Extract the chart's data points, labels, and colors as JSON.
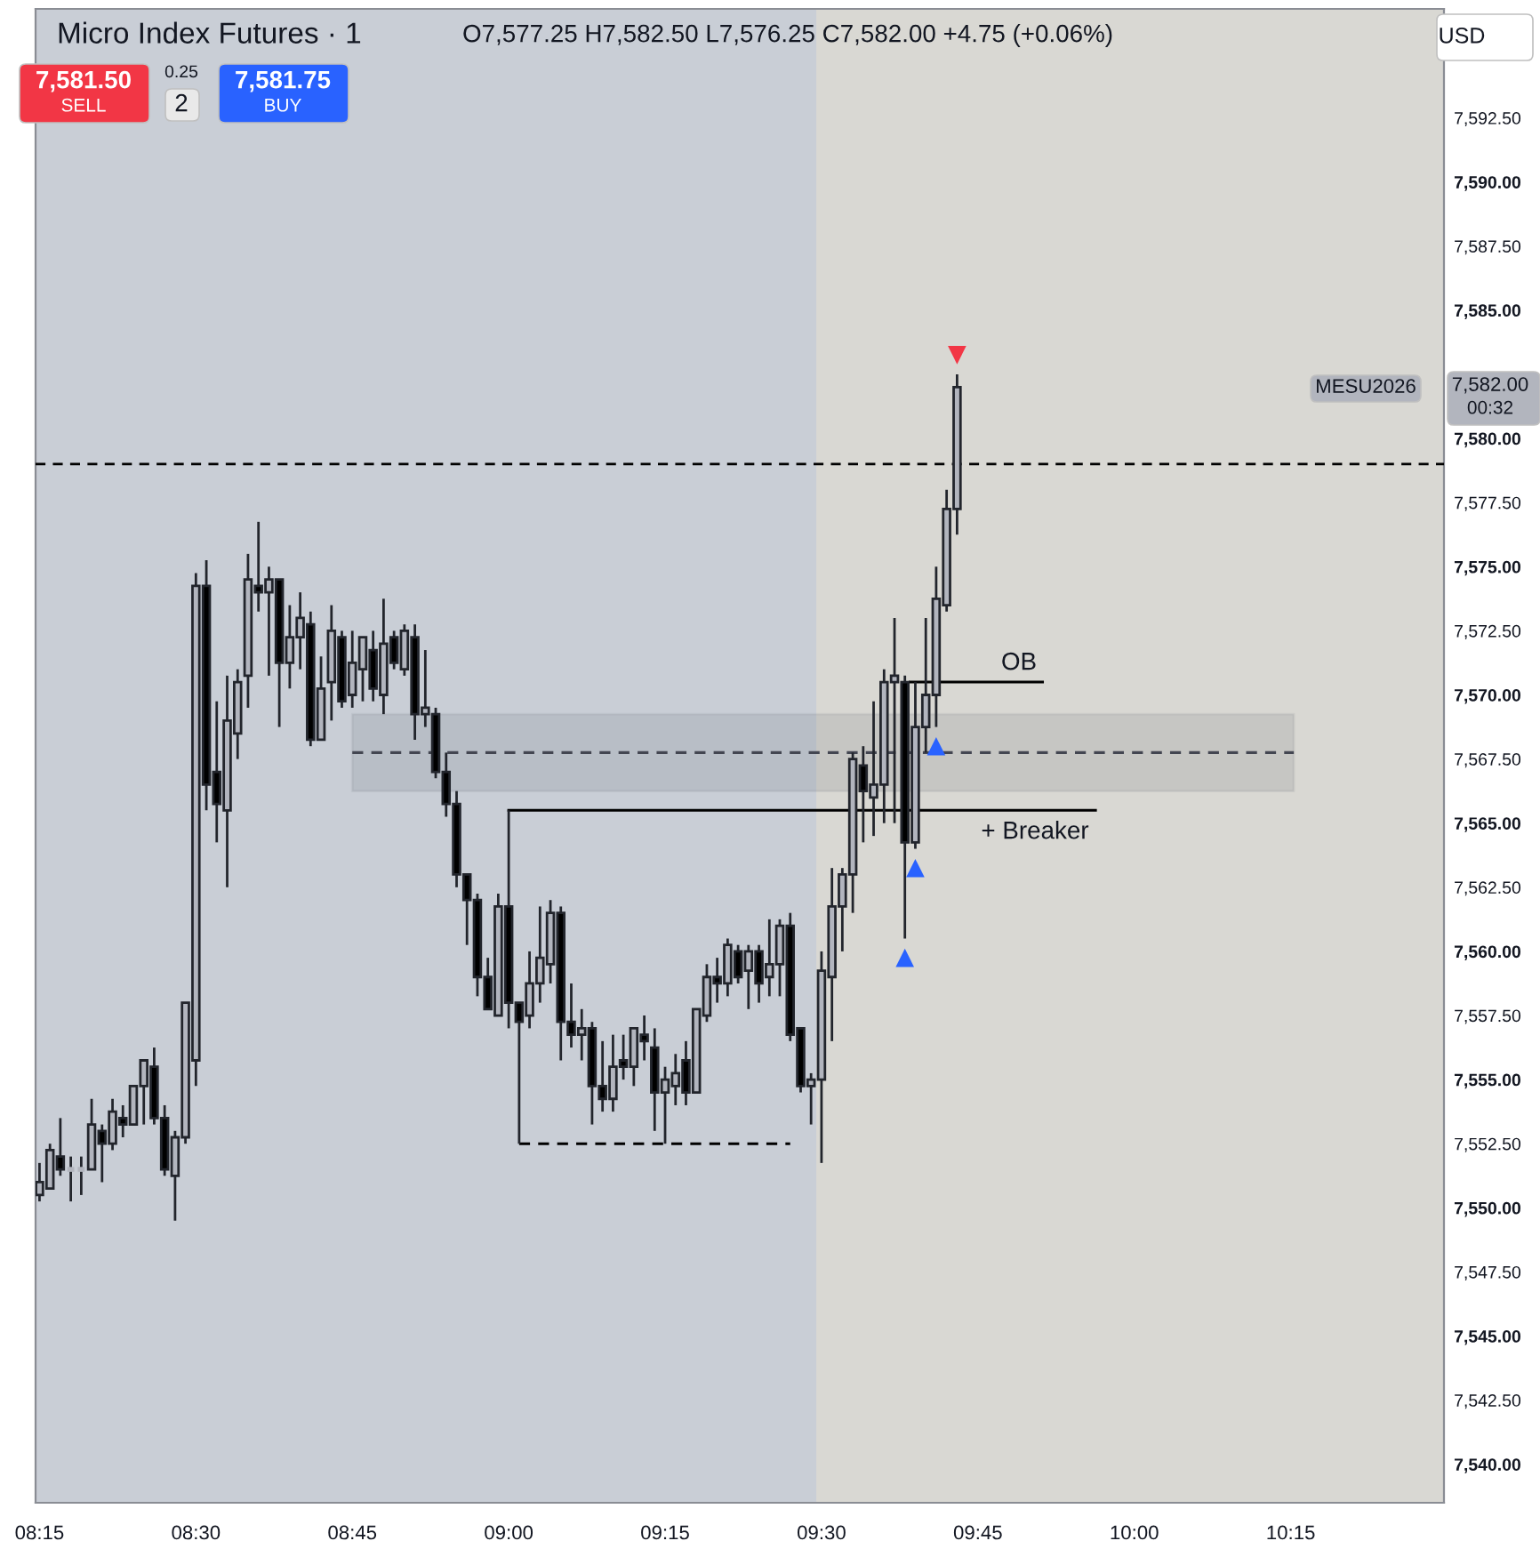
{
  "chart_data": {
    "type": "candlestick",
    "title": "Micro Index Futures · 1",
    "subtitle": "O7,577.25 H7,582.50 L7,576.25 C7,582.00 +4.75 (+0.06%)",
    "xlim": [
      8.2437,
      10.495
    ],
    "ylim": [
      7538.5,
      7596.75
    ],
    "xticks": [
      {
        "value": 8.25,
        "label": "08:15"
      },
      {
        "value": 8.5,
        "label": "08:30"
      },
      {
        "value": 8.75,
        "label": "08:45"
      },
      {
        "value": 9,
        "label": "09:00"
      },
      {
        "value": 9.25,
        "label": "09:15"
      },
      {
        "value": 9.5,
        "label": "09:30"
      },
      {
        "value": 9.75,
        "label": "09:45"
      },
      {
        "value": 10,
        "label": "10:00"
      },
      {
        "value": 10.25,
        "label": "10:15"
      }
    ],
    "yticks": [
      {
        "value": 7540,
        "label": "7,540.00"
      },
      {
        "value": 7542.5,
        "label": "7,542.50"
      },
      {
        "value": 7545,
        "label": "7,545.00"
      },
      {
        "value": 7547.5,
        "label": "7,547.50"
      },
      {
        "value": 7550,
        "label": "7,550.00"
      },
      {
        "value": 7552.5,
        "label": "7,552.50"
      },
      {
        "value": 7555,
        "label": "7,555.00"
      },
      {
        "value": 7557.5,
        "label": "7,557.50"
      },
      {
        "value": 7560,
        "label": "7,560.00"
      },
      {
        "value": 7562.5,
        "label": "7,562.50"
      },
      {
        "value": 7565,
        "label": "7,565.00"
      },
      {
        "value": 7567.5,
        "label": "7,567.50"
      },
      {
        "value": 7570,
        "label": "7,570.00"
      },
      {
        "value": 7572.5,
        "label": "7,572.50"
      },
      {
        "value": 7575,
        "label": "7,575.00"
      },
      {
        "value": 7577.5,
        "label": "7,577.50"
      },
      {
        "value": 7580,
        "label": "7,580.00"
      },
      {
        "value": 7585,
        "label": "7,585.00"
      },
      {
        "value": 7587.5,
        "label": "7,587.50"
      },
      {
        "value": 7590,
        "label": "7,590.00"
      },
      {
        "value": 7592.5,
        "label": "7,592.50"
      }
    ],
    "grid": false,
    "legend": false,
    "series": [
      {
        "type": "candlestick",
        "color": "#b2b5be",
        "x": [
          8.25,
          8.2667,
          8.3,
          8.3167,
          8.3333,
          8.3667,
          8.4,
          8.4167,
          8.4667,
          8.4833,
          8.5,
          8.55,
          8.5667,
          8.5833,
          8.6167,
          8.65,
          8.6667,
          8.7,
          8.7167,
          8.75,
          8.7667,
          8.8,
          8.8333,
          8.8667,
          8.9833,
          9.0333,
          9.05,
          9.0667,
          9.1167,
          9.1667,
          9.2,
          9.25,
          9.2667,
          9.3,
          9.3167,
          9.35,
          9.3833,
          9.4167,
          9.4333,
          9.4833,
          9.5,
          9.5167,
          9.5333,
          9.55,
          9.5833,
          9.6,
          9.6167,
          9.65,
          9.6667,
          9.6833,
          9.7,
          9.7167
        ],
        "ohlc": [
          [
            7550.5,
            7551.75,
            7550.25,
            7551
          ],
          [
            7550.75,
            7552.5,
            7550.75,
            7552.25
          ],
          [
            7551.5,
            7552,
            7550.25,
            7551.5
          ],
          [
            7551.5,
            7552,
            7550.5,
            7551.5
          ],
          [
            7551.5,
            7554.25,
            7551.5,
            7553.25
          ],
          [
            7552.5,
            7554.25,
            7552.25,
            7553.75
          ],
          [
            7553.25,
            7554.75,
            7553.25,
            7554.75
          ],
          [
            7554.75,
            7555.75,
            7553.25,
            7555.75
          ],
          [
            7551.25,
            7553,
            7549.5,
            7552.75
          ],
          [
            7552.75,
            7558,
            7552.5,
            7558
          ],
          [
            7555.75,
            7574.75,
            7554.75,
            7574.25
          ],
          [
            7565.5,
            7570.75,
            7562.5,
            7569
          ],
          [
            7568.5,
            7571,
            7567.5,
            7570.5
          ],
          [
            7570.75,
            7575.5,
            7569.5,
            7574.5
          ],
          [
            7574,
            7575,
            7570.75,
            7574.5
          ],
          [
            7571.25,
            7573.5,
            7570.25,
            7572.25
          ],
          [
            7572.25,
            7574,
            7571,
            7573
          ],
          [
            7568.25,
            7571.5,
            7568.25,
            7570.25
          ],
          [
            7570.5,
            7573.5,
            7569,
            7572.5
          ],
          [
            7570,
            7572.5,
            7569.5,
            7571.25
          ],
          [
            7571,
            7572.25,
            7569.75,
            7572.25
          ],
          [
            7570,
            7573.75,
            7569.25,
            7572
          ],
          [
            7571,
            7572.75,
            7570.75,
            7572.5
          ],
          [
            7569.25,
            7571.75,
            7568.75,
            7569.5
          ],
          [
            7557.5,
            7562.25,
            7557.5,
            7561.75
          ],
          [
            7557.5,
            7560,
            7557,
            7558.75
          ],
          [
            7558.75,
            7561.75,
            7558,
            7559.75
          ],
          [
            7559.5,
            7562,
            7558.75,
            7561.5
          ],
          [
            7556.75,
            7557.75,
            7555.75,
            7557
          ],
          [
            7554.25,
            7556.75,
            7553.75,
            7555.5
          ],
          [
            7555.5,
            7557,
            7554.75,
            7557
          ],
          [
            7554.5,
            7555.5,
            7552.5,
            7555
          ],
          [
            7554.75,
            7556,
            7554,
            7555.25
          ],
          [
            7554.5,
            7557.75,
            7554.5,
            7557.75
          ],
          [
            7557.5,
            7559.5,
            7557.25,
            7559
          ],
          [
            7558.75,
            7560.5,
            7558.25,
            7560.25
          ],
          [
            7559.25,
            7560.25,
            7557.75,
            7560
          ],
          [
            7559,
            7561.25,
            7558.25,
            7559.5
          ],
          [
            7559.5,
            7561.25,
            7558.25,
            7561
          ],
          [
            7554.75,
            7555.25,
            7553.25,
            7555
          ],
          [
            7555,
            7560,
            7551.75,
            7559.25
          ],
          [
            7559,
            7563.25,
            7556.5,
            7561.75
          ],
          [
            7561.75,
            7563.25,
            7560,
            7563
          ],
          [
            7563,
            7567.75,
            7561.5,
            7567.5
          ],
          [
            7566,
            7569.75,
            7564.5,
            7566.5
          ],
          [
            7566.5,
            7571,
            7565,
            7570.5
          ],
          [
            7570.5,
            7573,
            7565,
            7570.75
          ],
          [
            7564.25,
            7570.5,
            7564,
            7568.75
          ],
          [
            7568.75,
            7573,
            7567.75,
            7570
          ],
          [
            7570,
            7575,
            7568.75,
            7573.75
          ],
          [
            7573.5,
            7578,
            7573.25,
            7577.25
          ],
          [
            7577.25,
            7582.5,
            7576.25,
            7582
          ]
        ]
      },
      {
        "type": "candlestick",
        "color": "#000000",
        "x": [
          8.2833,
          8.35,
          8.3833,
          8.4333,
          8.45,
          8.5167,
          8.5333,
          8.6,
          8.6333,
          8.6833,
          8.7333,
          8.7833,
          8.8167,
          8.85,
          8.8833,
          8.9,
          8.9167,
          8.9333,
          8.95,
          8.9667,
          9.0,
          9.0167,
          9.0833,
          9.1,
          9.1333,
          9.15,
          9.1833,
          9.2167,
          9.2333,
          9.2833,
          9.3333,
          9.3667,
          9.4,
          9.45,
          9.4667,
          9.5667,
          9.6333
        ],
        "ohlc": [
          [
            7552,
            7553.5,
            7551.25,
            7551.5
          ],
          [
            7553,
            7553.25,
            7551,
            7552.5
          ],
          [
            7553.5,
            7554,
            7552.75,
            7553.25
          ],
          [
            7555.5,
            7556.25,
            7553.25,
            7553.5
          ],
          [
            7553.5,
            7554,
            7551.25,
            7551.5
          ],
          [
            7574.25,
            7575.25,
            7565.5,
            7566.5
          ],
          [
            7567,
            7569.75,
            7564.25,
            7565.75
          ],
          [
            7574.25,
            7576.75,
            7573.25,
            7574
          ],
          [
            7574.5,
            7574.5,
            7568.75,
            7571.25
          ],
          [
            7572.75,
            7573.25,
            7568,
            7568.25
          ],
          [
            7572.25,
            7572.5,
            7569.5,
            7569.75
          ],
          [
            7571.75,
            7572.5,
            7569.75,
            7570.25
          ],
          [
            7572.25,
            7572.5,
            7571,
            7571.25
          ],
          [
            7572.25,
            7572.75,
            7568.25,
            7569.25
          ],
          [
            7569.25,
            7569.5,
            7566.75,
            7567
          ],
          [
            7567,
            7567.75,
            7565.25,
            7565.75
          ],
          [
            7565.75,
            7566.25,
            7562.5,
            7563
          ],
          [
            7563,
            7563,
            7560.25,
            7562
          ],
          [
            7562,
            7562.25,
            7558.25,
            7559
          ],
          [
            7559,
            7559.75,
            7557.75,
            7557.75
          ],
          [
            7561.75,
            7565.5,
            7557,
            7558
          ],
          [
            7558,
            7558,
            7552.5,
            7557.25
          ],
          [
            7561.5,
            7561.75,
            7555.75,
            7557.25
          ],
          [
            7557.25,
            7558.75,
            7556.25,
            7556.75
          ],
          [
            7557,
            7557.25,
            7553.25,
            7554.75
          ],
          [
            7554.75,
            7556.5,
            7553.75,
            7554.25
          ],
          [
            7555.75,
            7556.75,
            7555,
            7555.5
          ],
          [
            7556.75,
            7557.5,
            7555.75,
            7556.5
          ],
          [
            7556.25,
            7557,
            7553,
            7554.5
          ],
          [
            7555.75,
            7556.5,
            7554,
            7554.5
          ],
          [
            7559,
            7559.75,
            7558,
            7558.75
          ],
          [
            7560,
            7560.25,
            7558.75,
            7559
          ],
          [
            7560,
            7560.25,
            7558,
            7558.75
          ],
          [
            7561,
            7561.5,
            7556.5,
            7556.75
          ],
          [
            7557,
            7557,
            7554.5,
            7554.75
          ],
          [
            7567.25,
            7568,
            7564.25,
            7566.25
          ],
          [
            7570.5,
            7570.75,
            7560.5,
            7564.25
          ]
        ]
      },
      {
        "type": "line",
        "line_style": "dashed",
        "color": "#434651",
        "x": [
          8.75,
          10.255
        ],
        "values": [
          7567.75,
          7567.75
        ],
        "lower": [
          7566.25,
          7566.25
        ],
        "upper": [
          7569.25,
          7569.25
        ]
      },
      {
        "type": "line",
        "line_style": "solid",
        "color": "#000000",
        "x": [
          9.0,
          9.938
        ],
        "values": [
          7565.5,
          7565.5
        ]
      },
      {
        "type": "line",
        "line_style": "dashed",
        "color": "#000000",
        "x": [
          9.0167,
          9.45
        ],
        "values": [
          7552.5,
          7552.5
        ]
      },
      {
        "type": "line",
        "line_style": "solid",
        "color": "#000000",
        "x": [
          9.6417,
          9.8533
        ],
        "values": [
          7570.5,
          7570.5
        ]
      },
      {
        "type": "scatter",
        "marker": "triangle",
        "color": "#2962ff",
        "x": [
          9.6333,
          9.65,
          9.6833
        ],
        "values": [
          7559.75,
          7563.25,
          7568
        ]
      },
      {
        "type": "scatter",
        "marker": "triangle_down",
        "color": "#f23645",
        "x": [
          9.7167
        ],
        "values": [
          7583.25
        ]
      }
    ],
    "ref_lines": [
      {
        "axis": "y",
        "value": 7579,
        "line_style": "dashed",
        "color": "#000000"
      }
    ],
    "bands": [
      {
        "axis": "x",
        "from": 8.2437,
        "to": 9.4917,
        "color": "#c9ced6"
      }
    ],
    "annotations": [
      "OB",
      "+ Breaker",
      "MESU2026",
      "7,582.00",
      "00:32",
      "7,581.50",
      "SELL",
      "0.25",
      "2",
      "7,581.75",
      "BUY",
      "USD"
    ]
  }
}
